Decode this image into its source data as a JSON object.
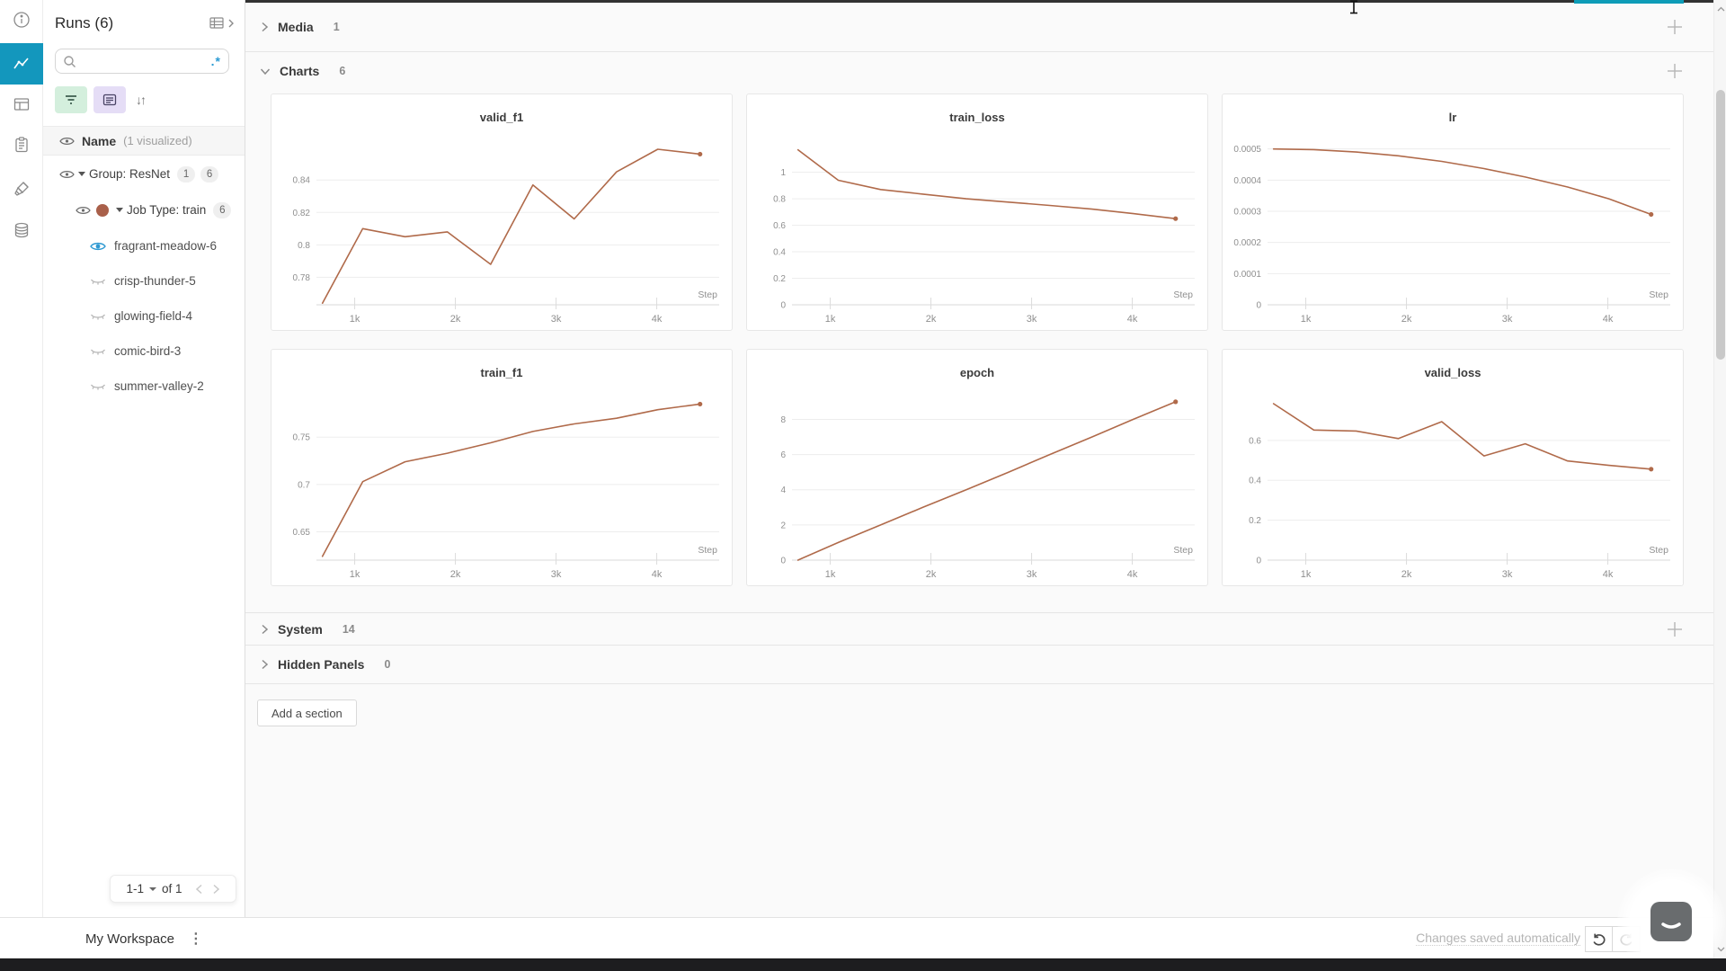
{
  "left_rail": {
    "items": [
      {
        "name": "info"
      },
      {
        "name": "workspace-charts",
        "active": true
      },
      {
        "name": "runs-table"
      },
      {
        "name": "logs"
      },
      {
        "name": "sweeps"
      },
      {
        "name": "artifacts"
      }
    ]
  },
  "sidebar": {
    "title": "Runs (6)",
    "search": {
      "value": "",
      "placeholder": ""
    },
    "header_row": {
      "label": "Name",
      "annotation": "(1 visualized)"
    },
    "tree": {
      "group": {
        "label": "Group: ResNet",
        "badges": [
          "1",
          "6"
        ]
      },
      "job": {
        "label": "Job Type: train",
        "badge": "6",
        "dot_color": "#a9604a"
      },
      "runs": [
        {
          "name": "fragrant-meadow-6",
          "visualized": true
        },
        {
          "name": "crisp-thunder-5",
          "visualized": false
        },
        {
          "name": "glowing-field-4",
          "visualized": false
        },
        {
          "name": "comic-bird-3",
          "visualized": false
        },
        {
          "name": "summer-valley-2",
          "visualized": false
        }
      ]
    },
    "pagination": {
      "range": "1-1",
      "of": "of 1"
    }
  },
  "sections": [
    {
      "label": "Media",
      "count": "1",
      "collapsed": true
    },
    {
      "label": "Charts",
      "count": "6",
      "collapsed": false
    },
    {
      "label": "System",
      "count": "14",
      "collapsed": true
    },
    {
      "label": "Hidden Panels",
      "count": "0",
      "collapsed": true
    }
  ],
  "add_section_label": "Add a section",
  "footer": {
    "workspace": "My Workspace",
    "status": "Changes saved automatically"
  },
  "icons": {
    "sort": "↓↑",
    "kebab": "⋮",
    "regex": ".*"
  },
  "colors": {
    "line": "#b06a4a",
    "run_dot": "#a9604a",
    "eye_blue": "#2e99d2",
    "rail_active": "#1397bd",
    "teal_segment": "#0d9cb7",
    "filter_bg": "#d4efdd",
    "settings_bg": "#e5ddf6"
  },
  "chart_data": [
    {
      "type": "line",
      "title": "valid_f1",
      "xlabel": "Step",
      "x": [
        680,
        1080,
        1500,
        1920,
        2350,
        2770,
        3180,
        3600,
        4010,
        4430
      ],
      "values": [
        0.764,
        0.81,
        0.805,
        0.808,
        0.788,
        0.837,
        0.816,
        0.845,
        0.859,
        0.856
      ],
      "xlim": [
        620,
        4620
      ],
      "ylim": [
        0.763,
        0.864
      ],
      "xticks": [
        1000,
        2000,
        3000,
        4000
      ],
      "xtick_labels": [
        "1k",
        "2k",
        "3k",
        "4k"
      ],
      "yticks": [
        0.78,
        0.8,
        0.82,
        0.84
      ],
      "ytick_labels": [
        "0.78",
        "0.8",
        "0.82",
        "0.84"
      ]
    },
    {
      "type": "line",
      "title": "train_loss",
      "xlabel": "Step",
      "x": [
        680,
        1080,
        1500,
        1920,
        2350,
        2770,
        3180,
        3600,
        4010,
        4430
      ],
      "values": [
        1.17,
        0.94,
        0.87,
        0.835,
        0.8,
        0.775,
        0.75,
        0.722,
        0.688,
        0.65
      ],
      "xlim": [
        620,
        4620
      ],
      "ylim": [
        0,
        1.235
      ],
      "xticks": [
        1000,
        2000,
        3000,
        4000
      ],
      "xtick_labels": [
        "1k",
        "2k",
        "3k",
        "4k"
      ],
      "yticks": [
        0,
        0.2,
        0.4,
        0.6,
        0.8,
        1
      ],
      "ytick_labels": [
        "0",
        "0.2",
        "0.4",
        "0.6",
        "0.8",
        "1"
      ]
    },
    {
      "type": "line",
      "title": "lr",
      "xlabel": "Step",
      "x": [
        680,
        1080,
        1500,
        1920,
        2350,
        2770,
        3180,
        3600,
        4010,
        4430
      ],
      "values": [
        0.0005,
        0.000498,
        0.00049,
        0.000478,
        0.00046,
        0.000437,
        0.00041,
        0.000378,
        0.00034,
        0.00029
      ],
      "xlim": [
        620,
        4620
      ],
      "ylim": [
        0,
        0.000525
      ],
      "xticks": [
        1000,
        2000,
        3000,
        4000
      ],
      "xtick_labels": [
        "1k",
        "2k",
        "3k",
        "4k"
      ],
      "yticks": [
        0,
        0.0001,
        0.0002,
        0.0003,
        0.0004,
        0.0005
      ],
      "ytick_labels": [
        "0",
        "0.0001",
        "0.0002",
        "0.0003",
        "0.0004",
        "0.0005"
      ]
    },
    {
      "type": "line",
      "title": "train_f1",
      "xlabel": "Step",
      "x": [
        680,
        1080,
        1500,
        1920,
        2350,
        2770,
        3180,
        3600,
        4010,
        4430
      ],
      "values": [
        0.624,
        0.703,
        0.724,
        0.733,
        0.744,
        0.756,
        0.764,
        0.77,
        0.779,
        0.785
      ],
      "xlim": [
        620,
        4620
      ],
      "ylim": [
        0.62,
        0.793
      ],
      "xticks": [
        1000,
        2000,
        3000,
        4000
      ],
      "xtick_labels": [
        "1k",
        "2k",
        "3k",
        "4k"
      ],
      "yticks": [
        0.65,
        0.7,
        0.75
      ],
      "ytick_labels": [
        "0.65",
        "0.7",
        "0.75"
      ]
    },
    {
      "type": "line",
      "title": "epoch",
      "xlabel": "Step",
      "x": [
        680,
        1080,
        1500,
        1920,
        2350,
        2770,
        3180,
        3600,
        4010,
        4430
      ],
      "values": [
        0,
        1,
        2,
        3,
        4,
        5,
        6,
        7,
        8,
        9
      ],
      "xlim": [
        620,
        4620
      ],
      "ylim": [
        0,
        9.3
      ],
      "xticks": [
        1000,
        2000,
        3000,
        4000
      ],
      "xtick_labels": [
        "1k",
        "2k",
        "3k",
        "4k"
      ],
      "yticks": [
        0,
        2,
        4,
        6,
        8
      ],
      "ytick_labels": [
        "0",
        "2",
        "4",
        "6",
        "8"
      ]
    },
    {
      "type": "line",
      "title": "valid_loss",
      "xlabel": "Step",
      "x": [
        680,
        1080,
        1500,
        1920,
        2350,
        2770,
        3180,
        3600,
        4010,
        4430
      ],
      "values": [
        0.784,
        0.652,
        0.647,
        0.609,
        0.694,
        0.522,
        0.583,
        0.497,
        0.475,
        0.456
      ],
      "xlim": [
        620,
        4620
      ],
      "ylim": [
        0,
        0.82
      ],
      "xticks": [
        1000,
        2000,
        3000,
        4000
      ],
      "xtick_labels": [
        "1k",
        "2k",
        "3k",
        "4k"
      ],
      "yticks": [
        0,
        0.2,
        0.4,
        0.6
      ],
      "ytick_labels": [
        "0",
        "0.2",
        "0.4",
        "0.6"
      ]
    }
  ]
}
